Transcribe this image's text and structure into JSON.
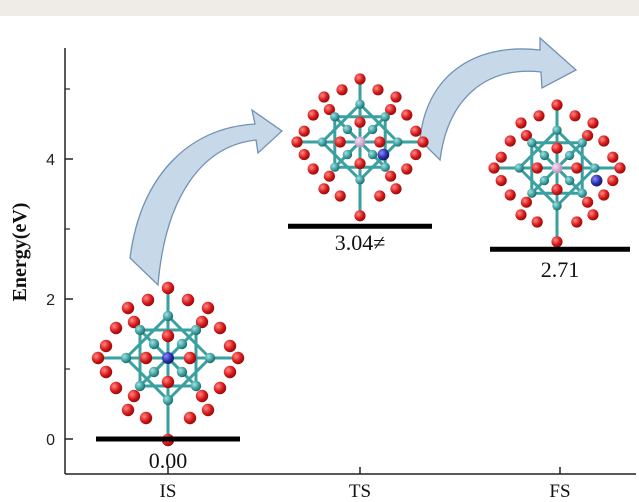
{
  "chart_data": {
    "type": "energy-level diagram",
    "ylabel": "Energy(eV)",
    "ylim": [
      0,
      5.3
    ],
    "yticks": [
      0,
      2,
      4
    ],
    "categories": [
      "IS",
      "TS",
      "FS"
    ],
    "values": [
      0.0,
      3.04,
      2.71
    ],
    "value_labels": [
      "0.00",
      "3.04≠",
      "2.71"
    ],
    "grid": false,
    "arrows": [
      {
        "from": "IS",
        "to": "TS"
      },
      {
        "from": "TS",
        "to": "FS"
      }
    ]
  },
  "colors": {
    "level_line": "#000000",
    "arrow_fill": "#c5d6e8",
    "arrow_stroke": "#6b8db0",
    "oxygen_atom": "#d81818",
    "metal_atom": "#3aa0a0",
    "center_atom": "#2b2fa8",
    "center_atom_alt": "#c89ac8"
  },
  "icons": [
    "cluster-molecule-is",
    "cluster-molecule-ts",
    "cluster-molecule-fs"
  ]
}
